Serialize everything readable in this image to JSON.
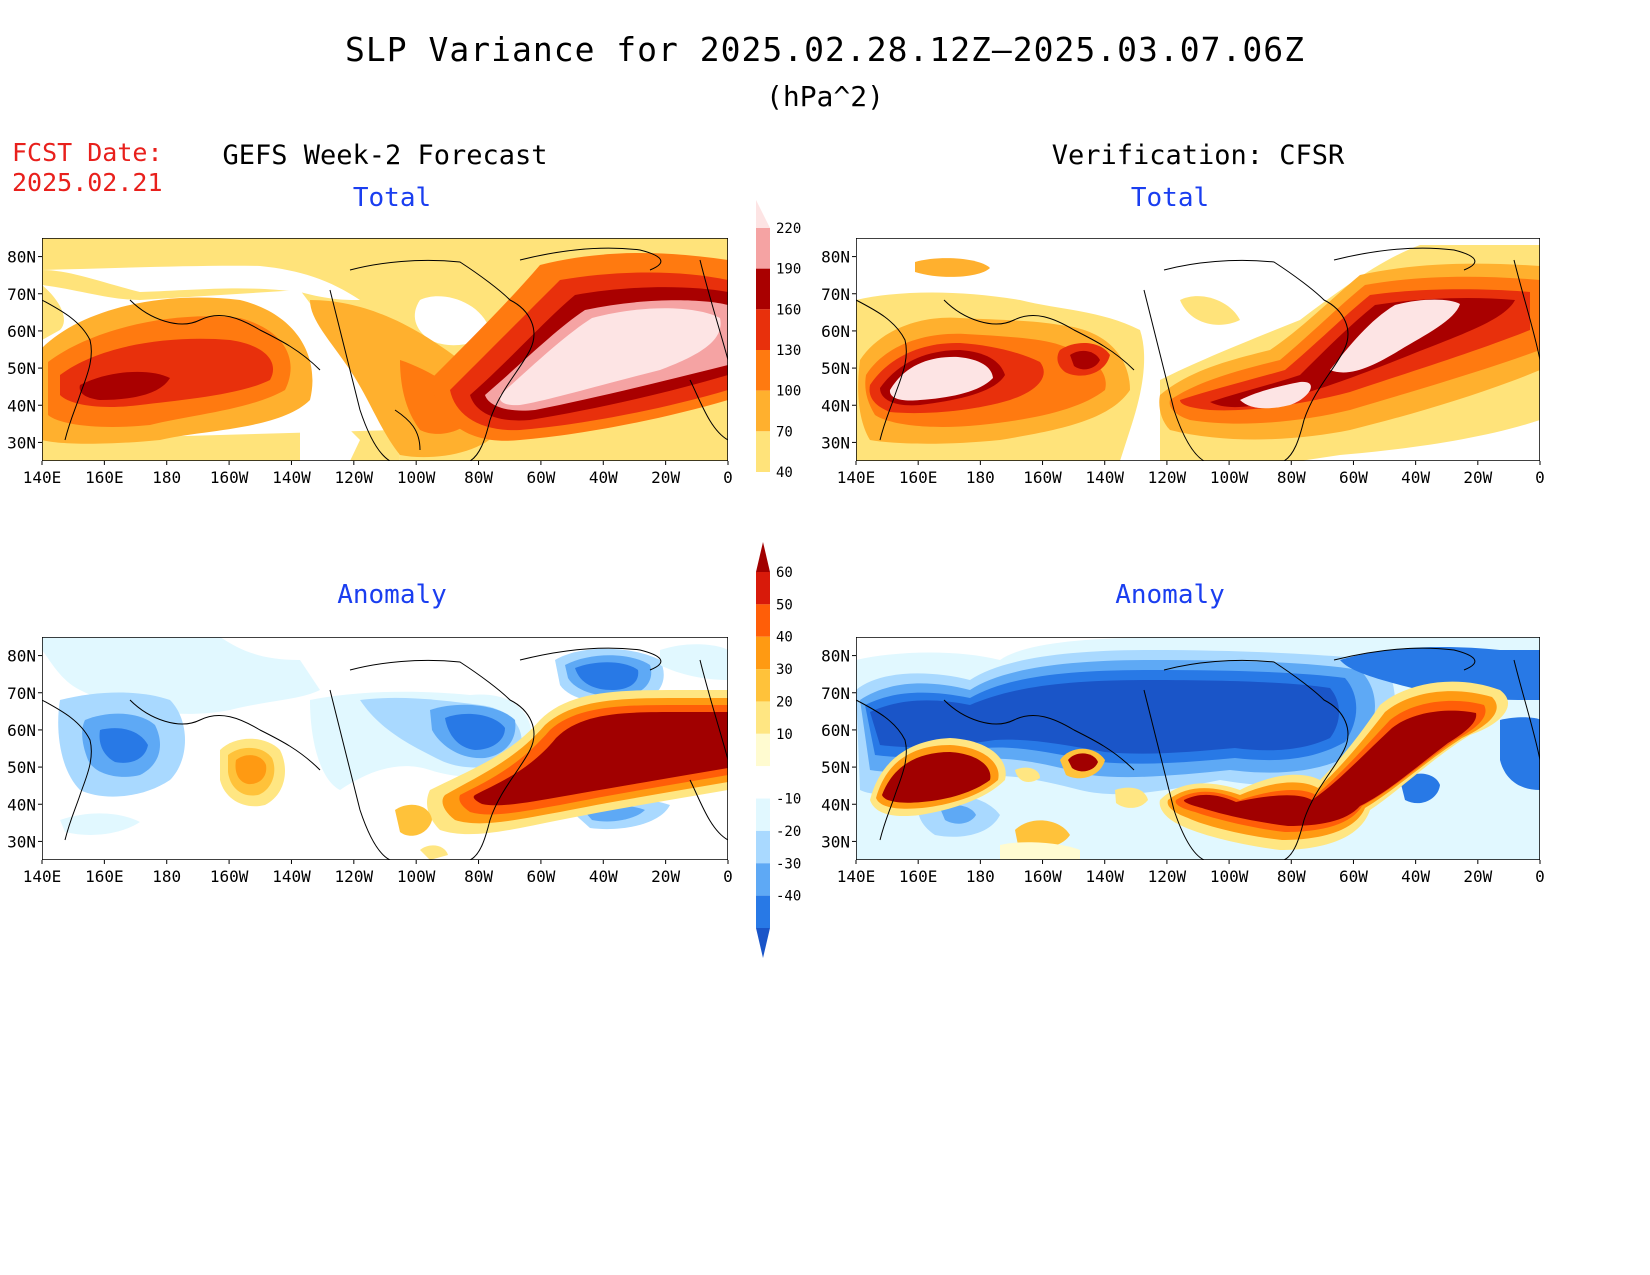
{
  "header": {
    "title": "SLP Variance for 2025.02.28.12Z–2025.03.07.06Z",
    "units": "(hPa^2)",
    "fcst_label": "FCST Date:",
    "fcst_date": "2025.02.21"
  },
  "columns": {
    "left": "GEFS Week-2 Forecast",
    "right": "Verification: CFSR"
  },
  "panels": {
    "forecast_total": "Total",
    "verif_total": "Total",
    "forecast_anomaly": "Anomaly",
    "verif_anomaly": "Anomaly"
  },
  "axes": {
    "lat_labels": [
      "80N",
      "70N",
      "60N",
      "50N",
      "40N",
      "30N"
    ],
    "lon_labels": [
      "140E",
      "160E",
      "180",
      "160W",
      "140W",
      "120W",
      "100W",
      "80W",
      "60W",
      "40W",
      "20W",
      "0"
    ],
    "lat_range": [
      25,
      85
    ],
    "lon_range_deg_east": [
      140,
      360
    ]
  },
  "colorbars": {
    "total": {
      "labels": [
        "40",
        "70",
        "100",
        "130",
        "160",
        "190",
        "220"
      ],
      "colors": [
        "#ffffff",
        "#ffe37a",
        "#ffb02e",
        "#ff7a10",
        "#e8300c",
        "#a90000",
        "#f5a3a3",
        "#fde4e4"
      ]
    },
    "anomaly": {
      "labels": [
        "60",
        "50",
        "40",
        "30",
        "20",
        "10",
        "-10",
        "-20",
        "-30",
        "-40"
      ],
      "colors": [
        "#a10000",
        "#d81a0a",
        "#ff5e08",
        "#ff9a12",
        "#ffc23a",
        "#ffe682",
        "#fffbd0",
        "#ffffff",
        "#e1f8ff",
        "#a9d9ff",
        "#5ea9f5",
        "#2879e6",
        "#1a55c8"
      ]
    }
  },
  "colors": {
    "panel_title": "#1a3ef0",
    "fcst_date": "#e8201c"
  }
}
